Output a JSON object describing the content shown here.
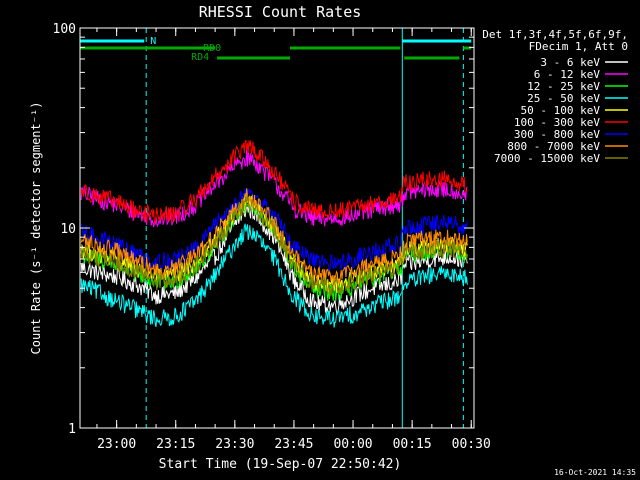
{
  "chart_data": {
    "type": "line",
    "title": "RHESSI Count Rates",
    "xlabel": "Start Time (19-Sep-07 22:50:42)",
    "ylabel": "Count Rate (s⁻¹ detector segment⁻¹)",
    "y_scale": "log",
    "ylim": [
      1,
      100
    ],
    "xlim": [
      "22:50:42",
      "00:30:42"
    ],
    "x_ticks": [
      "23:00",
      "23:15",
      "23:30",
      "23:45",
      "00:00",
      "00:15",
      "00:30"
    ],
    "y_ticks": [
      "1",
      "10",
      "100"
    ],
    "legend_header": [
      "Det 1f,3f,4f,5f,6f,9f,",
      "FDecim 1, Att 0"
    ],
    "timestamp": "16-Oct-2021 14:35",
    "annotations": [
      "N",
      "RD0",
      "RD4"
    ],
    "day_boundaries": [
      {
        "x": "22:50:42",
        "style": "solid"
      },
      {
        "x": "23:07:30",
        "style": "dashed"
      },
      {
        "x": "00:12:30",
        "style": "solid"
      },
      {
        "x": "00:28:00",
        "style": "dashed"
      }
    ],
    "x": [
      "22:51",
      "22:55",
      "23:00",
      "23:05",
      "23:10",
      "23:15",
      "23:20",
      "23:25",
      "23:30",
      "23:33",
      "23:35",
      "23:40",
      "23:45",
      "23:50",
      "23:55",
      "00:00",
      "00:05",
      "00:10",
      "00:12",
      "00:13",
      "00:20",
      "00:25",
      "00:29"
    ],
    "series": [
      {
        "name": "3 - 6 keV",
        "color": "#ffffff",
        "values": [
          6.4,
          6.0,
          5.7,
          5.2,
          4.6,
          4.7,
          5.6,
          7.2,
          10.5,
          12.5,
          12.0,
          9.0,
          5.5,
          4.2,
          4.1,
          4.5,
          5.0,
          5.3,
          5.5,
          6.5,
          7.0,
          7.2,
          6.8
        ]
      },
      {
        "name": "6 - 12 keV",
        "color": "#ff00ff",
        "values": [
          15.0,
          14.0,
          13.0,
          11.8,
          11.0,
          11.3,
          13.0,
          16.5,
          20.5,
          22.5,
          21.5,
          17.0,
          12.5,
          11.0,
          11.2,
          11.5,
          12.3,
          13.0,
          13.2,
          15.0,
          15.5,
          15.5,
          14.5
        ]
      },
      {
        "name": "12 - 25 keV",
        "color": "#00ff00",
        "values": [
          7.3,
          7.0,
          6.6,
          5.9,
          5.3,
          5.4,
          6.3,
          8.2,
          11.5,
          13.3,
          12.8,
          9.6,
          6.3,
          4.9,
          4.7,
          5.1,
          5.6,
          6.0,
          6.2,
          7.3,
          7.7,
          7.8,
          7.3
        ]
      },
      {
        "name": "25 - 50 keV",
        "color": "#00ffff",
        "values": [
          5.2,
          4.8,
          4.3,
          3.9,
          3.5,
          3.6,
          4.3,
          5.8,
          8.3,
          9.7,
          9.3,
          7.0,
          4.5,
          3.6,
          3.5,
          3.7,
          4.1,
          4.4,
          4.6,
          5.3,
          5.8,
          5.9,
          5.6
        ]
      },
      {
        "name": "50 - 100 keV",
        "color": "#ffff00",
        "values": [
          7.9,
          7.4,
          7.0,
          6.3,
          5.7,
          5.8,
          6.7,
          8.7,
          12.0,
          14.0,
          13.5,
          10.2,
          6.8,
          5.4,
          5.2,
          5.6,
          6.1,
          6.5,
          6.7,
          7.8,
          8.2,
          8.3,
          7.8
        ]
      },
      {
        "name": "100 - 300 keV",
        "color": "#ff0000",
        "values": [
          15.5,
          14.5,
          13.5,
          12.2,
          11.5,
          11.8,
          14.0,
          18.0,
          23.0,
          25.5,
          24.5,
          19.0,
          13.5,
          12.0,
          12.1,
          12.5,
          13.3,
          14.0,
          14.2,
          16.8,
          17.5,
          17.5,
          16.0
        ]
      },
      {
        "name": "300 - 800 keV",
        "color": "#0000ff",
        "values": [
          9.5,
          9.0,
          8.3,
          7.4,
          6.8,
          6.9,
          7.9,
          10.3,
          13.3,
          15.0,
          14.5,
          11.5,
          8.0,
          6.8,
          6.6,
          7.0,
          7.6,
          8.1,
          8.3,
          9.8,
          10.5,
          10.6,
          10.0
        ]
      },
      {
        "name": "800 - 7000 keV",
        "color": "#ff8c00",
        "values": [
          8.7,
          8.2,
          7.6,
          6.8,
          6.2,
          6.3,
          7.2,
          9.3,
          12.5,
          14.3,
          13.8,
          10.6,
          7.3,
          5.9,
          5.7,
          6.1,
          6.7,
          7.1,
          7.3,
          8.5,
          8.9,
          9.0,
          8.5
        ]
      },
      {
        "name": "7000 - 15000 keV",
        "color": "#808000",
        "values": [
          7.5,
          7.1,
          6.7,
          6.0,
          5.4,
          5.5,
          6.4,
          8.3,
          11.5,
          13.2,
          12.7,
          9.7,
          6.5,
          5.2,
          5.0,
          5.3,
          5.9,
          6.2,
          6.4,
          7.5,
          7.8,
          7.9,
          7.4
        ]
      }
    ],
    "status_bars": [
      {
        "label": "N",
        "color": "#00ffff",
        "segments": [
          [
            "22:50:42",
            "23:07:00"
          ],
          [
            "00:12:30",
            "00:30:00"
          ]
        ]
      },
      {
        "label": "RD0",
        "color": "#00aa00",
        "segments": [
          [
            "22:50:42",
            "23:25:00"
          ],
          [
            "23:44:00",
            "00:12:00"
          ],
          [
            "00:28:00",
            "00:30:00"
          ]
        ]
      },
      {
        "label": "RD4",
        "color": "#00aa00",
        "segments": [
          [
            "23:25:30",
            "23:44:00"
          ],
          [
            "00:13:00",
            "00:27:00"
          ]
        ]
      }
    ]
  }
}
